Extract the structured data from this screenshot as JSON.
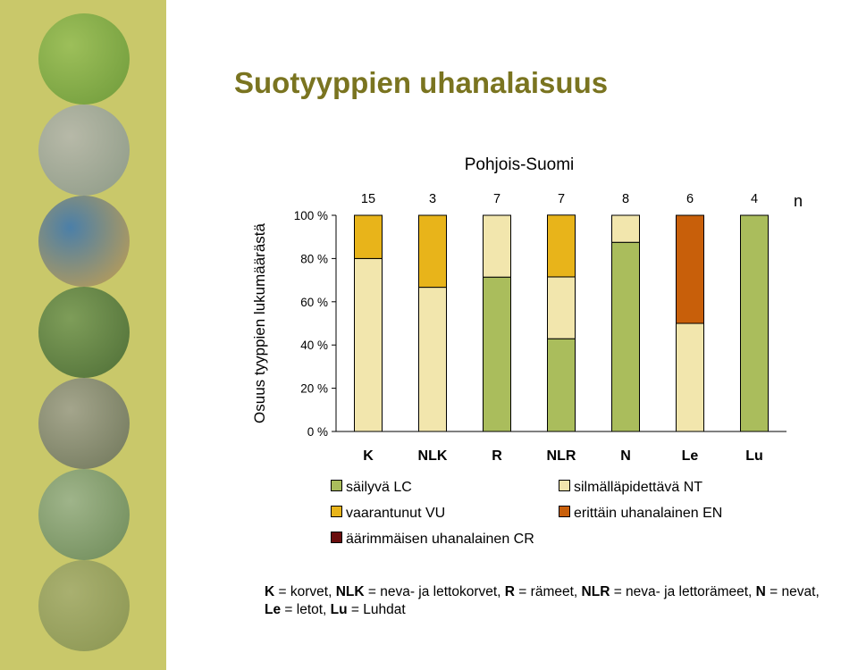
{
  "page": {
    "title": "Suotyyppien uhanalaisuus"
  },
  "sidebar": {
    "photos": [
      {
        "icon": "grass-photo",
        "colors": [
          "#9dbf5a",
          "#6e9a3a"
        ]
      },
      {
        "icon": "rocky-shore-photo",
        "colors": [
          "#b7b9a8",
          "#8d9a86"
        ]
      },
      {
        "icon": "wetland-pools-photo",
        "colors": [
          "#4b7fa8",
          "#c7a04d"
        ]
      },
      {
        "icon": "forest-photo",
        "colors": [
          "#7e9d59",
          "#4e6e36"
        ]
      },
      {
        "icon": "boulder-field-photo",
        "colors": [
          "#a4a58c",
          "#6f7659"
        ]
      },
      {
        "icon": "cabin-meadow-photo",
        "colors": [
          "#9fb48a",
          "#6d8a57"
        ]
      },
      {
        "icon": "open-fen-photo",
        "colors": [
          "#a9b070",
          "#8a9551"
        ]
      }
    ]
  },
  "chart_data": {
    "type": "bar",
    "stacked": true,
    "title": "Pohjois-Suomi",
    "ylabel": "Osuus tyyppien lukumäärästä",
    "yticks": [
      "0 %",
      "20 %",
      "40 %",
      "60 %",
      "80 %",
      "100 %"
    ],
    "ylim": [
      0,
      100
    ],
    "categories": [
      "K",
      "NLK",
      "R",
      "NLR",
      "N",
      "Le",
      "Lu"
    ],
    "n_label": "n",
    "n_values": [
      "15",
      "3",
      "7",
      "7",
      "8",
      "6",
      "4"
    ],
    "series": [
      {
        "name": "säilyvä LC",
        "color": "#aabd5c",
        "values": [
          0,
          0,
          71.4,
          42.9,
          87.5,
          0,
          100
        ]
      },
      {
        "name": "silmälläpidettävä NT",
        "color": "#f2e6ad",
        "values": [
          80,
          66.7,
          28.6,
          28.6,
          12.5,
          50,
          0
        ]
      },
      {
        "name": "vaarantunut VU",
        "color": "#e8b41a",
        "values": [
          20,
          33.3,
          0,
          28.6,
          0,
          0,
          0
        ]
      },
      {
        "name": "erittäin uhanalainen EN",
        "color": "#c85f0a",
        "values": [
          0,
          0,
          0,
          0,
          0,
          50,
          0
        ]
      },
      {
        "name": "äärimmäisen uhanalainen CR",
        "color": "#6a0d0d",
        "values": [
          0,
          0,
          0,
          0,
          0,
          0,
          0
        ]
      }
    ],
    "legend": [
      {
        "label": "säilyvä LC",
        "color": "#aabd5c"
      },
      {
        "label": "silmälläpidettävä NT",
        "color": "#f2e6ad"
      },
      {
        "label": "vaarantunut VU",
        "color": "#e8b41a"
      },
      {
        "label": "erittäin uhanalainen EN",
        "color": "#c85f0a"
      },
      {
        "label": "äärimmäisen uhanalainen CR",
        "color": "#6a0d0d"
      }
    ],
    "legend_placement": "bottom",
    "grid": false
  },
  "footnote": {
    "line1": [
      {
        "b": "K",
        "t": " = korvet, "
      },
      {
        "b": "NLK",
        "t": " = neva- ja lettokorvet, "
      },
      {
        "b": "R",
        "t": " = rämeet, "
      },
      {
        "b": "NLR",
        "t": " = neva- ja lettorämeet, "
      },
      {
        "b": "N",
        "t": " = nevat,"
      }
    ],
    "line2": [
      {
        "b": "Le",
        "t": " = letot, "
      },
      {
        "b": "Lu",
        "t": " = Luhdat"
      }
    ]
  }
}
